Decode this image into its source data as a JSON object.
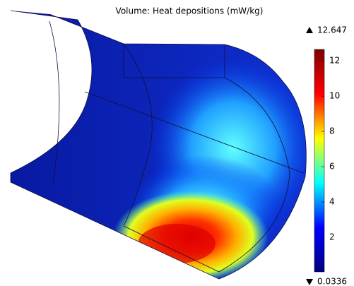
{
  "chart_data": {
    "type": "surface",
    "title": "Volume: Heat depositions (mW/kg)",
    "max": 12.647,
    "min": 0.0336,
    "colorbar": {
      "ylim": [
        0.0336,
        12.647
      ],
      "yticks": [
        2,
        4,
        6,
        8,
        10,
        12
      ],
      "colors": [
        "#00007f",
        "#0000ff",
        "#00ffff",
        "#ffff00",
        "#ff0000",
        "#7f0000"
      ]
    }
  }
}
